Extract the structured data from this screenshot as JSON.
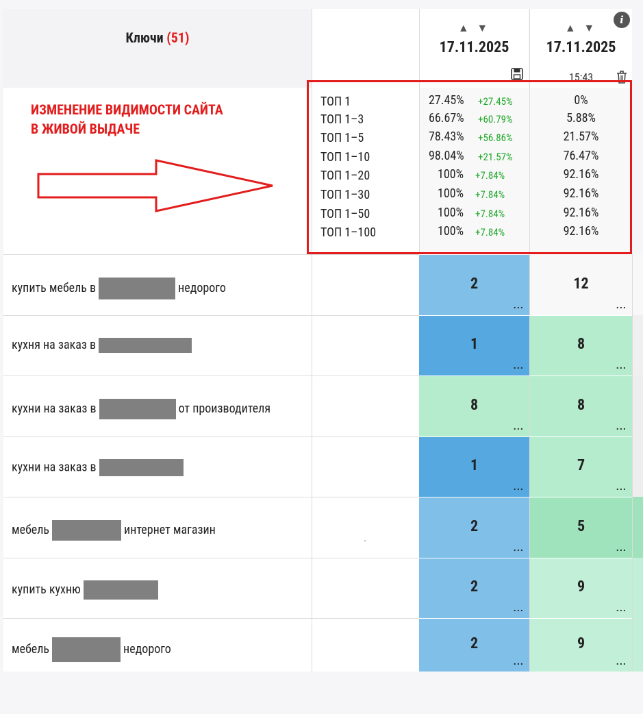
{
  "header": {
    "keys_label": "Ключи",
    "keys_count": "(51)",
    "sort_arrows": "▲ ▼",
    "columns": [
      {
        "date": "17.11.2025",
        "time": ""
      },
      {
        "date": "17.11.2025",
        "time": "15:43"
      }
    ]
  },
  "annotation": {
    "line1": "ИЗМЕНЕНИЕ ВИДИМОСТИ САЙТА",
    "line2": "В ЖИВОЙ ВЫДАЧЕ"
  },
  "summary": {
    "labels": [
      "ТОП 1",
      "ТОП 1–3",
      "ТОП 1–5",
      "ТОП 1–10",
      "ТОП 1–20",
      "ТОП 1–30",
      "ТОП 1–50",
      "ТОП 1–100"
    ],
    "col1": [
      {
        "value": "27.45%",
        "delta": "+27.45%"
      },
      {
        "value": "66.67%",
        "delta": "+60.79%"
      },
      {
        "value": "78.43%",
        "delta": "+56.86%"
      },
      {
        "value": "98.04%",
        "delta": "+21.57%"
      },
      {
        "value": "100%",
        "delta": "+7.84%"
      },
      {
        "value": "100%",
        "delta": "+7.84%"
      },
      {
        "value": "100%",
        "delta": "+7.84%"
      },
      {
        "value": "100%",
        "delta": "+7.84%"
      }
    ],
    "col2": [
      "0%",
      "5.88%",
      "21.57%",
      "76.47%",
      "92.16%",
      "92.16%",
      "92.16%",
      "92.16%"
    ]
  },
  "rows": [
    {
      "pre": "купить мебель в",
      "post": "недорого",
      "pos1": "2",
      "pos2": "12",
      "c1": "#7fbfe8",
      "c2": "#f8f8f9",
      "edge": "#f8f8f9"
    },
    {
      "pre": "кухня на заказ в",
      "post": "",
      "pos1": "1",
      "pos2": "8",
      "c1": "#55a9e0",
      "c2": "#b5ecce",
      "edge": "#f0f0f0"
    },
    {
      "pre": "кухни на заказ в",
      "post": "от производителя",
      "pos1": "8",
      "pos2": "8",
      "c1": "#b5ecce",
      "c2": "#b5ecce",
      "edge": "#eeeeee"
    },
    {
      "pre": "кухни на заказ в",
      "post": "",
      "pos1": "1",
      "pos2": "7",
      "c1": "#55a9e0",
      "c2": "#b5ecce",
      "edge": "#eeeeee"
    },
    {
      "pre": "мебель",
      "post": "интернет магазин",
      "pos1": "2",
      "pos2": "5",
      "c1": "#7fbfe8",
      "c2": "#9fe3bd",
      "edge": "#9fe3bd"
    },
    {
      "pre": "купить кухню",
      "post": "",
      "pos1": "2",
      "pos2": "9",
      "c1": "#7fbfe8",
      "c2": "#c2efd7",
      "edge": "#c2efd7"
    },
    {
      "pre": "мебель",
      "post": "недорого",
      "pos1": "2",
      "pos2": "9",
      "c1": "#7fbfe8",
      "c2": "#c2efd7",
      "edge": "#c2efd7"
    }
  ],
  "dots": "...",
  "mid_marker": "-",
  "info_glyph": "i",
  "colors": {
    "accent_red": "#e31d1d",
    "delta_green": "#22a82a"
  }
}
